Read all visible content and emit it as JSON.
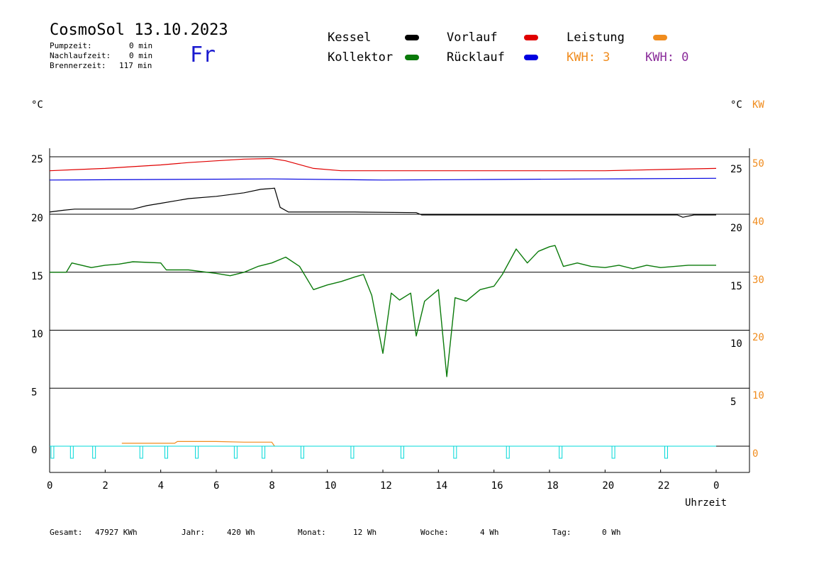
{
  "header": {
    "title": "CosmoSol 13.10.2023",
    "day": "Fr",
    "stats": [
      {
        "label": "Pumpzeit:",
        "value": "0 min"
      },
      {
        "label": "Nachlaufzeit:",
        "value": "0 min"
      },
      {
        "label": "Brennerzeit:",
        "value": "117 min"
      }
    ]
  },
  "legend": {
    "kessel": {
      "label": "Kessel",
      "color": "#000000"
    },
    "vorlauf": {
      "label": "Vorlauf",
      "color": "#e00000"
    },
    "leistung": {
      "label": "Leistung",
      "color": "#f08c1e"
    },
    "kollektor": {
      "label": "Kollektor",
      "color": "#0a7a0a"
    },
    "ruecklauf": {
      "label": "Rücklauf",
      "color": "#0000e0"
    },
    "kwh1": {
      "label": "KWH: 3",
      "color": "#f08c1e"
    },
    "kwh2": {
      "label": "KWH: 0",
      "color": "#8a2b9a"
    }
  },
  "axes": {
    "left_unit": "°C",
    "right_unit_c": "°C",
    "right_unit_kw": "KW",
    "xlabel": "Uhrzeit"
  },
  "footer": {
    "gesamt_label": "Gesamt:",
    "gesamt_value": "47927 KWh",
    "jahr_label": "Jahr:",
    "jahr_value": "420 Wh",
    "monat_label": "Monat:",
    "monat_value": "12 Wh",
    "woche_label": "Woche:",
    "woche_value": "4 Wh",
    "tag_label": "Tag:",
    "tag_value": "0 Wh"
  },
  "chart_data": {
    "type": "line",
    "x_range": [
      0,
      24
    ],
    "x_ticks": [
      "0",
      "2",
      "4",
      "6",
      "8",
      "10",
      "12",
      "14",
      "16",
      "18",
      "20",
      "22",
      "0"
    ],
    "left_ticks": [
      "25",
      "20",
      "15",
      "10",
      "5",
      "0"
    ],
    "right_c_ticks": [
      "25",
      "20",
      "15",
      "10",
      "5"
    ],
    "right_kw_ticks": [
      "50",
      "40",
      "30",
      "20",
      "10",
      "0"
    ],
    "y_ticks_values": [
      0,
      5,
      10,
      15,
      20,
      25
    ],
    "y_range": [
      -1.5,
      26
    ],
    "note_compressed_bands": "Vorlauf/Rücklauf/Kessel plotted in upper band (right axis 20–25 scaled ×2)",
    "series": [
      {
        "name": "Vorlauf",
        "color": "#e00000",
        "band": "top",
        "points": [
          [
            0,
            47.6
          ],
          [
            1,
            47.8
          ],
          [
            2,
            48.0
          ],
          [
            3,
            48.3
          ],
          [
            4,
            48.6
          ],
          [
            5,
            49.0
          ],
          [
            6,
            49.3
          ],
          [
            7,
            49.6
          ],
          [
            8,
            49.7
          ],
          [
            8.5,
            49.3
          ],
          [
            9.5,
            48.0
          ],
          [
            10.5,
            47.6
          ],
          [
            12,
            47.6
          ],
          [
            14,
            47.6
          ],
          [
            16,
            47.6
          ],
          [
            18,
            47.6
          ],
          [
            20,
            47.6
          ],
          [
            22,
            47.8
          ],
          [
            24,
            48.0
          ]
        ]
      },
      {
        "name": "Rücklauf",
        "color": "#0000e0",
        "band": "top",
        "points": [
          [
            0,
            46.0
          ],
          [
            4,
            46.1
          ],
          [
            8,
            46.2
          ],
          [
            12,
            46.0
          ],
          [
            16,
            46.1
          ],
          [
            20,
            46.2
          ],
          [
            24,
            46.3
          ]
        ]
      },
      {
        "name": "Kessel",
        "color": "#000000",
        "band": "top",
        "points": [
          [
            0,
            40.5
          ],
          [
            0.5,
            40.8
          ],
          [
            0.9,
            41.0
          ],
          [
            3,
            41.0
          ],
          [
            3.5,
            41.6
          ],
          [
            4,
            42.0
          ],
          [
            5,
            42.8
          ],
          [
            6,
            43.2
          ],
          [
            7,
            43.8
          ],
          [
            7.6,
            44.4
          ],
          [
            8.1,
            44.6
          ],
          [
            8.3,
            41.3
          ],
          [
            8.6,
            40.5
          ],
          [
            11,
            40.5
          ],
          [
            13.2,
            40.4
          ],
          [
            13.4,
            40.0
          ],
          [
            22.6,
            40.0
          ],
          [
            22.8,
            39.6
          ],
          [
            23.2,
            40.0
          ],
          [
            24,
            40.0
          ]
        ]
      },
      {
        "name": "Kollektor",
        "color": "#0a7a0a",
        "points": [
          [
            0,
            15.0
          ],
          [
            0.6,
            15.0
          ],
          [
            0.8,
            15.8
          ],
          [
            1.5,
            15.4
          ],
          [
            2,
            15.6
          ],
          [
            2.5,
            15.7
          ],
          [
            3,
            15.9
          ],
          [
            4,
            15.8
          ],
          [
            4.2,
            15.2
          ],
          [
            5,
            15.2
          ],
          [
            6,
            14.9
          ],
          [
            6.5,
            14.7
          ],
          [
            7,
            15.0
          ],
          [
            7.5,
            15.5
          ],
          [
            8,
            15.8
          ],
          [
            8.5,
            16.3
          ],
          [
            9,
            15.5
          ],
          [
            9.5,
            13.5
          ],
          [
            10,
            13.9
          ],
          [
            10.5,
            14.2
          ],
          [
            11,
            14.6
          ],
          [
            11.3,
            14.8
          ],
          [
            11.6,
            13.0
          ],
          [
            12,
            8.0
          ],
          [
            12.3,
            13.2
          ],
          [
            12.6,
            12.6
          ],
          [
            13,
            13.2
          ],
          [
            13.2,
            9.5
          ],
          [
            13.5,
            12.5
          ],
          [
            14,
            13.5
          ],
          [
            14.3,
            6.0
          ],
          [
            14.6,
            12.8
          ],
          [
            15,
            12.5
          ],
          [
            15.5,
            13.5
          ],
          [
            16,
            13.8
          ],
          [
            16.3,
            14.8
          ],
          [
            16.8,
            17.0
          ],
          [
            17.2,
            15.8
          ],
          [
            17.6,
            16.8
          ],
          [
            18,
            17.2
          ],
          [
            18.2,
            17.3
          ],
          [
            18.5,
            15.5
          ],
          [
            19,
            15.8
          ],
          [
            19.5,
            15.5
          ],
          [
            20,
            15.4
          ],
          [
            20.5,
            15.6
          ],
          [
            21,
            15.3
          ],
          [
            21.5,
            15.6
          ],
          [
            22,
            15.4
          ],
          [
            23,
            15.6
          ],
          [
            24,
            15.6
          ]
        ]
      },
      {
        "name": "Leistung",
        "color": "#f08c1e",
        "band": "kw",
        "points": [
          [
            2.6,
            0.5
          ],
          [
            4.5,
            0.5
          ],
          [
            4.6,
            0.8
          ],
          [
            6,
            0.8
          ],
          [
            7,
            0.7
          ],
          [
            8,
            0.7
          ],
          [
            8.1,
            0
          ]
        ]
      }
    ],
    "pump_marks_hours": [
      0.1,
      0.8,
      1.6,
      3.3,
      4.2,
      5.3,
      6.7,
      7.7,
      9.1,
      10.9,
      12.7,
      14.6,
      16.5,
      18.4,
      20.3,
      22.2
    ],
    "baseline_color": "#00d8d8"
  }
}
